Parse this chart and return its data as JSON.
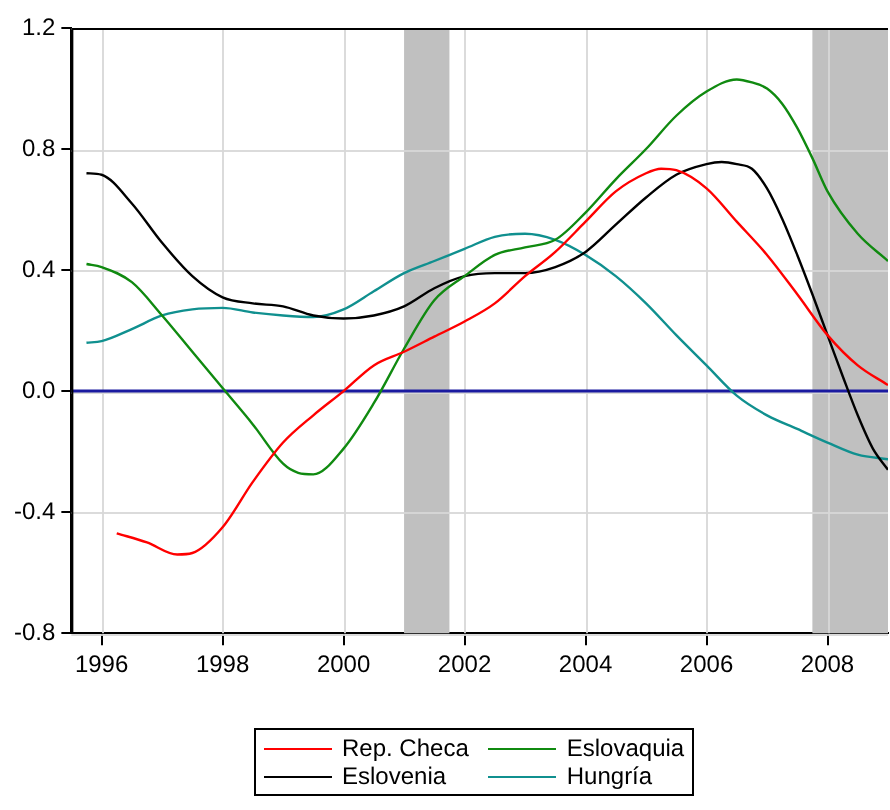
{
  "chart_data": {
    "type": "line",
    "xlim": [
      1995.5,
      2009
    ],
    "xticks": [
      1996,
      1998,
      2000,
      2002,
      2004,
      2006,
      2008
    ],
    "ylim": [
      -0.8,
      1.2
    ],
    "yticks": [
      -0.8,
      -0.4,
      {
        "value": 0,
        "label": "0.0"
      },
      0.4,
      0.8,
      1.2
    ],
    "grid": true,
    "legend": "bottom",
    "marker": "none",
    "line_style": "solid",
    "ref_lines": [
      {
        "axis": "y",
        "value": 0,
        "color": "#1a1aa0"
      }
    ],
    "bands": [
      {
        "axis": "x",
        "from": 2001,
        "to": 2001.75,
        "color": "#c0c0c0"
      },
      {
        "axis": "x",
        "from": 2007.75,
        "to": 2009,
        "color": "#c0c0c0"
      }
    ],
    "series": [
      {
        "name": "Rep. Checa",
        "color": "#ff0000",
        "x": [
          1996.25,
          1996.75,
          1997.25,
          1997.5,
          1998,
          1998.5,
          1999,
          1999.5,
          2000,
          2000.5,
          2001,
          2001.5,
          2002,
          2002.5,
          2003,
          2003.5,
          2004,
          2004.5,
          2005,
          2005.25,
          2005.5,
          2006,
          2006.5,
          2007,
          2007.5,
          2008,
          2008.5,
          2009
        ],
        "values": [
          -0.47,
          -0.5,
          -0.54,
          -0.535,
          -0.45,
          -0.3,
          -0.17,
          -0.08,
          0.0,
          0.085,
          0.13,
          0.18,
          0.23,
          0.29,
          0.38,
          0.46,
          0.56,
          0.66,
          0.72,
          0.735,
          0.73,
          0.67,
          0.56,
          0.45,
          0.32,
          0.185,
          0.085,
          0.02
        ]
      },
      {
        "name": "Eslovaquia",
        "color": "#108a10",
        "x": [
          1995.75,
          1996,
          1996.5,
          1997,
          1997.5,
          1998,
          1998.5,
          1999,
          1999.25,
          1999.5,
          2000,
          2000.5,
          2001,
          2001.5,
          2002,
          2002.5,
          2003,
          2003.5,
          2004,
          2004.5,
          2005,
          2005.5,
          2006,
          2006.5,
          2006.75,
          2007,
          2007.25,
          2007.5,
          2007.75,
          2008,
          2008.5,
          2009
        ],
        "values": [
          0.42,
          0.41,
          0.36,
          0.25,
          0.13,
          0.01,
          -0.11,
          -0.24,
          -0.27,
          -0.275,
          -0.19,
          -0.04,
          0.14,
          0.3,
          0.38,
          0.45,
          0.475,
          0.5,
          0.59,
          0.7,
          0.8,
          0.91,
          0.99,
          1.03,
          1.02,
          1.0,
          0.95,
          0.87,
          0.77,
          0.66,
          0.52,
          0.43
        ]
      },
      {
        "name": "Eslovenia",
        "color": "#000000",
        "x": [
          1995.75,
          1996,
          1996.5,
          1997,
          1997.5,
          1998,
          1998.5,
          1999,
          1999.5,
          2000,
          2000.5,
          2001,
          2001.5,
          2002,
          2002.5,
          2003,
          2003.5,
          2004,
          2004.5,
          2005,
          2005.5,
          2006,
          2006.25,
          2006.5,
          2006.75,
          2007,
          2007.25,
          2007.5,
          2007.75,
          2008,
          2008.25,
          2008.5,
          2008.75,
          2009
        ],
        "values": [
          0.72,
          0.715,
          0.62,
          0.49,
          0.38,
          0.31,
          0.29,
          0.28,
          0.25,
          0.24,
          0.25,
          0.28,
          0.34,
          0.38,
          0.39,
          0.39,
          0.41,
          0.46,
          0.55,
          0.64,
          0.715,
          0.75,
          0.757,
          0.75,
          0.735,
          0.67,
          0.57,
          0.45,
          0.32,
          0.185,
          0.05,
          -0.08,
          -0.19,
          -0.26
        ]
      },
      {
        "name": "Hungría",
        "color": "#10908f",
        "x": [
          1995.75,
          1996,
          1996.5,
          1997,
          1997.5,
          1998,
          1998.5,
          1999,
          1999.5,
          2000,
          2000.5,
          2001,
          2001.5,
          2002,
          2002.5,
          2003,
          2003.5,
          2004,
          2004.5,
          2005,
          2005.5,
          2006,
          2006.5,
          2007,
          2007.5,
          2008,
          2008.5,
          2009
        ],
        "values": [
          0.16,
          0.165,
          0.205,
          0.25,
          0.27,
          0.275,
          0.26,
          0.25,
          0.245,
          0.27,
          0.33,
          0.39,
          0.43,
          0.47,
          0.51,
          0.52,
          0.5,
          0.45,
          0.38,
          0.29,
          0.185,
          0.085,
          -0.015,
          -0.08,
          -0.125,
          -0.17,
          -0.21,
          -0.225
        ]
      }
    ]
  }
}
